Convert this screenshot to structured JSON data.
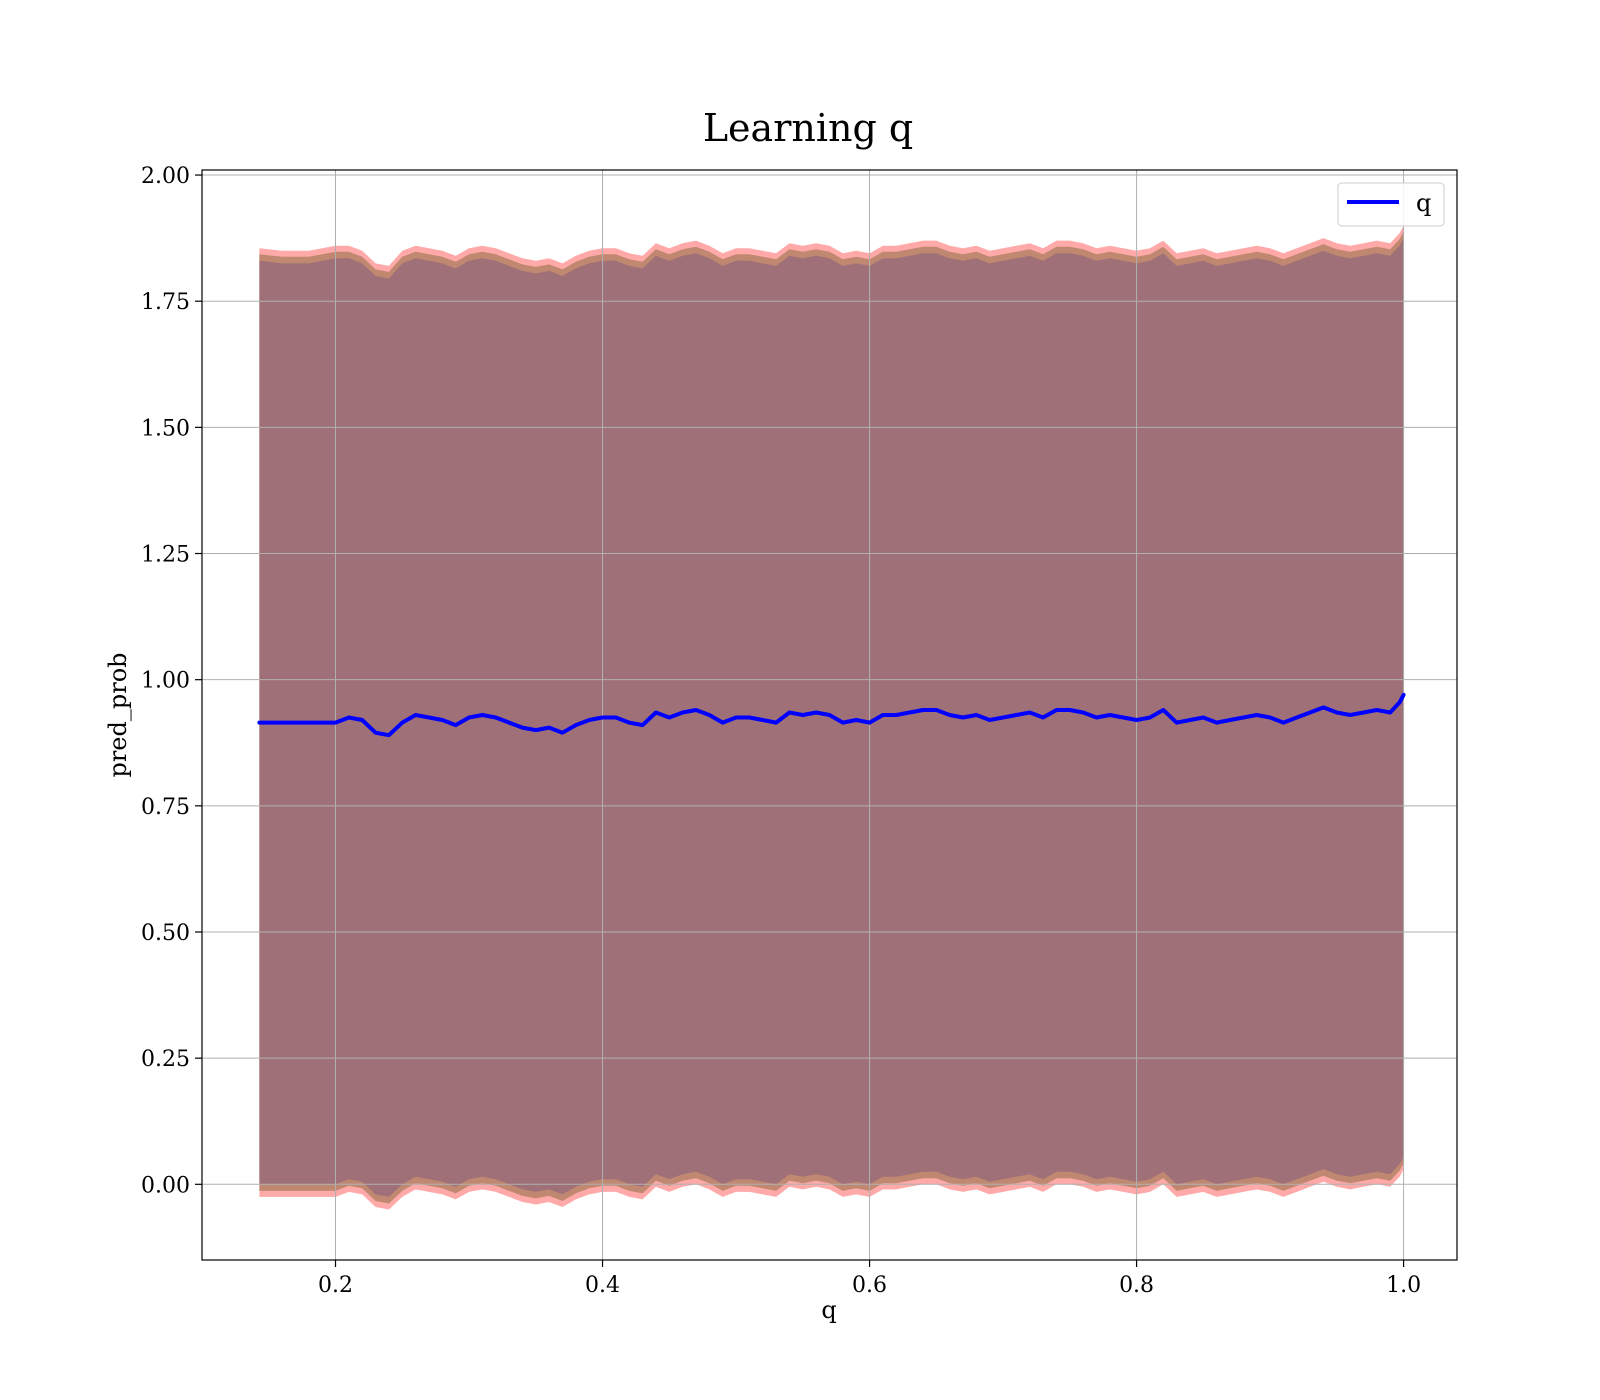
{
  "chart_data": {
    "type": "area",
    "title": "Learning q",
    "xlabel": "q",
    "ylabel": "pred_prob",
    "xlim": [
      0.1,
      1.04
    ],
    "ylim": [
      -0.15,
      2.01
    ],
    "xticks": [
      0.2,
      0.4,
      0.6,
      0.8,
      1.0
    ],
    "xtick_labels": [
      "0.2",
      "0.4",
      "0.6",
      "0.8",
      "1.0"
    ],
    "yticks": [
      0.0,
      0.25,
      0.5,
      0.75,
      1.0,
      1.25,
      1.5,
      1.75,
      2.0
    ],
    "ytick_labels": [
      "0.00",
      "0.25",
      "0.50",
      "0.75",
      "1.00",
      "1.25",
      "1.50",
      "1.75",
      "2.00"
    ],
    "grid": true,
    "legend": {
      "position": "top-right",
      "entries": [
        "q"
      ]
    },
    "colors": {
      "line": "#0000ff",
      "band_outer": "#ff9a9a",
      "band_mid": "#c08870",
      "band_inner": "#a07078",
      "frame": "#000000"
    },
    "series": [
      {
        "name": "q",
        "x": [
          0.143,
          0.16,
          0.18,
          0.2,
          0.21,
          0.22,
          0.23,
          0.24,
          0.25,
          0.26,
          0.27,
          0.28,
          0.29,
          0.3,
          0.31,
          0.32,
          0.33,
          0.34,
          0.35,
          0.36,
          0.37,
          0.38,
          0.39,
          0.4,
          0.41,
          0.42,
          0.43,
          0.44,
          0.45,
          0.46,
          0.47,
          0.48,
          0.49,
          0.5,
          0.51,
          0.52,
          0.53,
          0.54,
          0.55,
          0.56,
          0.57,
          0.58,
          0.59,
          0.6,
          0.61,
          0.62,
          0.63,
          0.64,
          0.65,
          0.66,
          0.67,
          0.68,
          0.69,
          0.7,
          0.71,
          0.72,
          0.73,
          0.74,
          0.75,
          0.76,
          0.77,
          0.78,
          0.79,
          0.8,
          0.81,
          0.82,
          0.83,
          0.84,
          0.85,
          0.86,
          0.87,
          0.88,
          0.89,
          0.9,
          0.91,
          0.92,
          0.93,
          0.94,
          0.95,
          0.96,
          0.97,
          0.98,
          0.99,
          0.997,
          1.0
        ],
        "y": [
          0.915,
          0.915,
          0.915,
          0.915,
          0.925,
          0.92,
          0.895,
          0.89,
          0.915,
          0.93,
          0.925,
          0.92,
          0.91,
          0.925,
          0.93,
          0.925,
          0.915,
          0.905,
          0.9,
          0.905,
          0.895,
          0.91,
          0.92,
          0.925,
          0.925,
          0.915,
          0.91,
          0.935,
          0.925,
          0.935,
          0.94,
          0.93,
          0.915,
          0.925,
          0.925,
          0.92,
          0.915,
          0.935,
          0.93,
          0.935,
          0.93,
          0.915,
          0.92,
          0.915,
          0.93,
          0.93,
          0.935,
          0.94,
          0.94,
          0.93,
          0.925,
          0.93,
          0.92,
          0.925,
          0.93,
          0.935,
          0.925,
          0.94,
          0.94,
          0.935,
          0.925,
          0.93,
          0.925,
          0.92,
          0.925,
          0.94,
          0.915,
          0.92,
          0.925,
          0.915,
          0.92,
          0.925,
          0.93,
          0.925,
          0.915,
          0.925,
          0.935,
          0.945,
          0.935,
          0.93,
          0.935,
          0.94,
          0.935,
          0.955,
          0.97
        ]
      },
      {
        "name": "",
        "x": [
          0.143,
          0.16,
          0.18,
          0.2,
          0.21,
          0.22,
          0.23,
          0.24,
          0.25,
          0.26,
          0.27,
          0.28,
          0.29,
          0.3,
          0.31,
          0.32,
          0.33,
          0.34,
          0.35,
          0.36,
          0.37,
          0.38,
          0.39,
          0.4,
          0.41,
          0.42,
          0.43,
          0.44,
          0.45,
          0.46,
          0.47,
          0.48,
          0.49,
          0.5,
          0.51,
          0.52,
          0.53,
          0.54,
          0.55,
          0.56,
          0.57,
          0.58,
          0.59,
          0.6,
          0.61,
          0.62,
          0.63,
          0.64,
          0.65,
          0.66,
          0.67,
          0.68,
          0.69,
          0.7,
          0.71,
          0.72,
          0.73,
          0.74,
          0.75,
          0.76,
          0.77,
          0.78,
          0.79,
          0.8,
          0.81,
          0.82,
          0.83,
          0.84,
          0.85,
          0.86,
          0.87,
          0.88,
          0.89,
          0.9,
          0.91,
          0.92,
          0.93,
          0.94,
          0.95,
          0.96,
          0.97,
          0.98,
          0.99,
          0.997,
          1.0
        ],
        "upper": [
          1.855,
          1.85,
          1.85,
          1.86,
          1.86,
          1.85,
          1.825,
          1.82,
          1.85,
          1.86,
          1.855,
          1.85,
          1.84,
          1.855,
          1.86,
          1.855,
          1.845,
          1.835,
          1.83,
          1.835,
          1.825,
          1.84,
          1.85,
          1.855,
          1.855,
          1.845,
          1.84,
          1.865,
          1.855,
          1.865,
          1.87,
          1.86,
          1.845,
          1.855,
          1.855,
          1.85,
          1.845,
          1.865,
          1.86,
          1.865,
          1.86,
          1.845,
          1.85,
          1.845,
          1.86,
          1.86,
          1.865,
          1.87,
          1.87,
          1.86,
          1.855,
          1.86,
          1.85,
          1.855,
          1.86,
          1.865,
          1.855,
          1.87,
          1.87,
          1.865,
          1.855,
          1.86,
          1.855,
          1.85,
          1.855,
          1.87,
          1.845,
          1.85,
          1.855,
          1.845,
          1.85,
          1.855,
          1.86,
          1.855,
          1.845,
          1.855,
          1.865,
          1.875,
          1.865,
          1.86,
          1.865,
          1.87,
          1.865,
          1.885,
          1.9
        ],
        "lower": [
          -0.025,
          -0.025,
          -0.025,
          -0.025,
          -0.015,
          -0.02,
          -0.045,
          -0.05,
          -0.025,
          -0.01,
          -0.015,
          -0.02,
          -0.03,
          -0.015,
          -0.01,
          -0.015,
          -0.025,
          -0.035,
          -0.04,
          -0.035,
          -0.045,
          -0.03,
          -0.02,
          -0.015,
          -0.015,
          -0.025,
          -0.03,
          -0.005,
          -0.015,
          -0.005,
          0.0,
          -0.01,
          -0.025,
          -0.015,
          -0.015,
          -0.02,
          -0.025,
          -0.005,
          -0.01,
          -0.005,
          -0.01,
          -0.025,
          -0.02,
          -0.025,
          -0.01,
          -0.01,
          -0.005,
          0.0,
          0.0,
          -0.01,
          -0.015,
          -0.01,
          -0.02,
          -0.015,
          -0.01,
          -0.005,
          -0.015,
          0.0,
          0.0,
          -0.005,
          -0.015,
          -0.01,
          -0.015,
          -0.02,
          -0.015,
          0.0,
          -0.025,
          -0.02,
          -0.015,
          -0.025,
          -0.02,
          -0.015,
          -0.01,
          -0.015,
          -0.025,
          -0.015,
          -0.005,
          0.005,
          -0.005,
          -0.01,
          -0.005,
          0.0,
          -0.005,
          0.015,
          0.03
        ]
      }
    ]
  }
}
